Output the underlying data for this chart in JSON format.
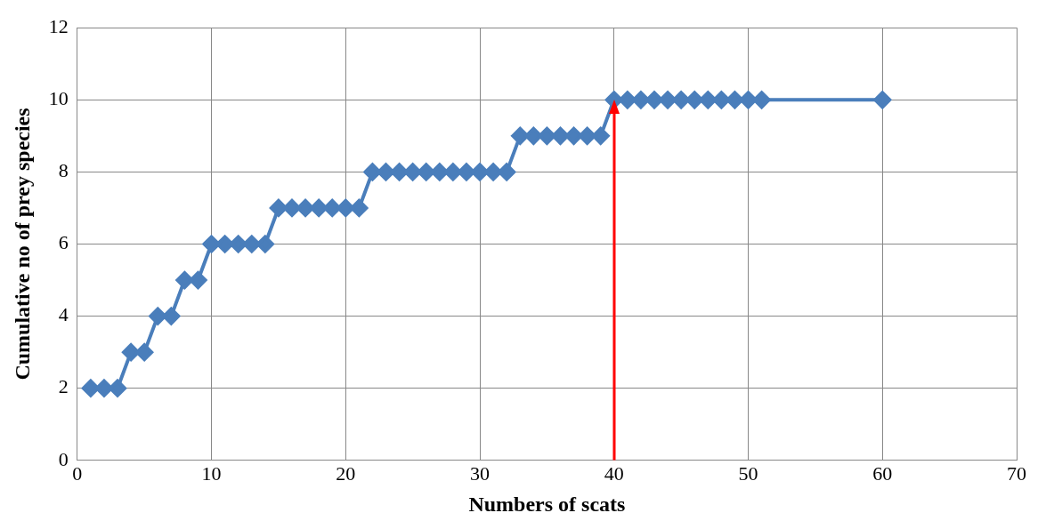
{
  "chart_data": {
    "type": "line",
    "xlabel": "Numbers of scats",
    "ylabel": "Cumulative no of prey species",
    "x": [
      1,
      2,
      3,
      4,
      5,
      6,
      7,
      8,
      9,
      10,
      11,
      12,
      13,
      14,
      15,
      16,
      17,
      18,
      19,
      20,
      21,
      22,
      23,
      24,
      25,
      26,
      27,
      28,
      29,
      30,
      31,
      32,
      33,
      34,
      35,
      36,
      37,
      38,
      39,
      40,
      41,
      42,
      43,
      44,
      45,
      46,
      47,
      48,
      49,
      50,
      51,
      60
    ],
    "series": [
      {
        "color": "#4a7ebb",
        "values": [
          2,
          2,
          2,
          3,
          3,
          4,
          4,
          5,
          5,
          6,
          6,
          6,
          6,
          6,
          7,
          7,
          7,
          7,
          7,
          7,
          7,
          8,
          8,
          8,
          8,
          8,
          8,
          8,
          8,
          8,
          8,
          8,
          9,
          9,
          9,
          9,
          9,
          9,
          9,
          10,
          10,
          10,
          10,
          10,
          10,
          10,
          10,
          10,
          10,
          10,
          10,
          10
        ]
      }
    ],
    "xlim": [
      0,
      70
    ],
    "xticks": [
      0,
      10,
      20,
      30,
      40,
      50,
      60,
      70
    ],
    "ylim": [
      0,
      12
    ],
    "yticks": [
      0,
      2,
      4,
      6,
      8,
      10,
      12
    ],
    "grid": true,
    "legend": false,
    "marker": "diamond",
    "line_style": "solid",
    "ref_lines": [
      {
        "axis": "x",
        "value": 40,
        "color": "#ff0000"
      }
    ]
  }
}
